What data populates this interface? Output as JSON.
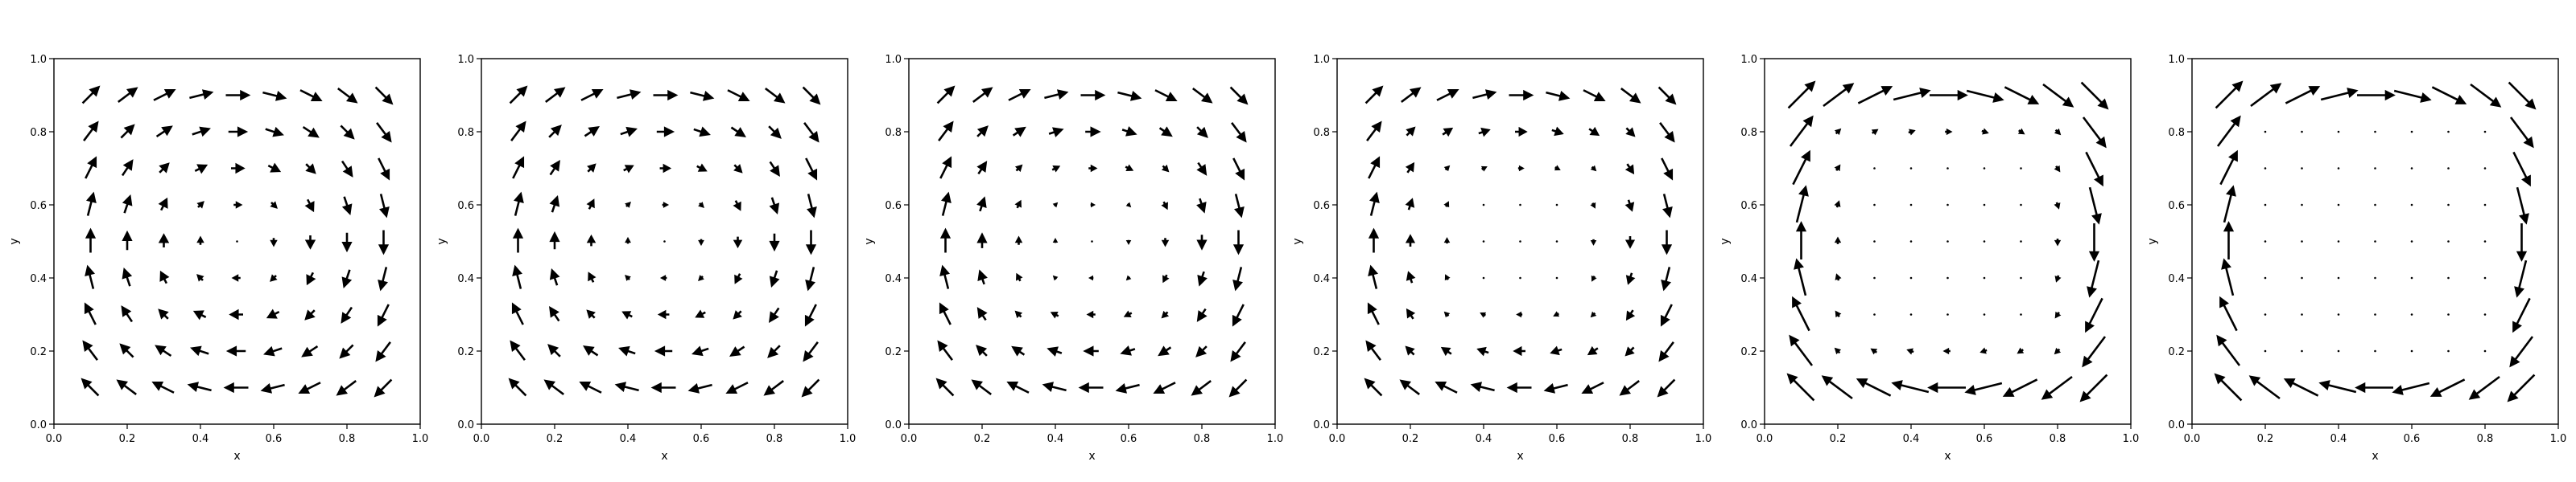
{
  "chart_data": [
    {
      "type": "quiver",
      "xlabel": "x",
      "ylabel": "y",
      "xlim": [
        0.0,
        1.0
      ],
      "ylim": [
        0.0,
        1.0
      ],
      "xticks": [
        "0.0",
        "0.2",
        "0.4",
        "0.6",
        "0.8",
        "1.0"
      ],
      "yticks": [
        "0.0",
        "0.2",
        "0.4",
        "0.6",
        "0.8",
        "1.0"
      ],
      "grid": false,
      "sample_points": [
        0.1,
        0.2,
        0.3,
        0.4,
        0.5,
        0.6,
        0.7,
        0.8,
        0.9
      ],
      "field": "clockwise circulation",
      "boundary_sharpness": 1
    },
    {
      "type": "quiver",
      "xlabel": "x",
      "ylabel": "y",
      "xlim": [
        0.0,
        1.0
      ],
      "ylim": [
        0.0,
        1.0
      ],
      "xticks": [
        "0.0",
        "0.2",
        "0.4",
        "0.6",
        "0.8",
        "1.0"
      ],
      "yticks": [
        "0.0",
        "0.2",
        "0.4",
        "0.6",
        "0.8",
        "1.0"
      ],
      "grid": false,
      "sample_points": [
        0.1,
        0.2,
        0.3,
        0.4,
        0.5,
        0.6,
        0.7,
        0.8,
        0.9
      ],
      "field": "clockwise circulation",
      "boundary_sharpness": 1.4
    },
    {
      "type": "quiver",
      "xlabel": "x",
      "ylabel": "y",
      "xlim": [
        0.0,
        1.0
      ],
      "ylim": [
        0.0,
        1.0
      ],
      "xticks": [
        "0.0",
        "0.2",
        "0.4",
        "0.6",
        "0.8",
        "1.0"
      ],
      "yticks": [
        "0.0",
        "0.2",
        "0.4",
        "0.6",
        "0.8",
        "1.0"
      ],
      "grid": false,
      "sample_points": [
        0.1,
        0.2,
        0.3,
        0.4,
        0.5,
        0.6,
        0.7,
        0.8,
        0.9
      ],
      "field": "clockwise circulation",
      "boundary_sharpness": 2
    },
    {
      "type": "quiver",
      "xlabel": "x",
      "ylabel": "y",
      "xlim": [
        0.0,
        1.0
      ],
      "ylim": [
        0.0,
        1.0
      ],
      "xticks": [
        "0.0",
        "0.2",
        "0.4",
        "0.6",
        "0.8",
        "1.0"
      ],
      "yticks": [
        "0.0",
        "0.2",
        "0.4",
        "0.6",
        "0.8",
        "1.0"
      ],
      "grid": false,
      "sample_points": [
        0.1,
        0.2,
        0.3,
        0.4,
        0.5,
        0.6,
        0.7,
        0.8,
        0.9
      ],
      "field": "clockwise circulation",
      "boundary_sharpness": 3
    },
    {
      "type": "quiver",
      "xlabel": "x",
      "ylabel": "y",
      "xlim": [
        0.0,
        1.0
      ],
      "ylim": [
        0.0,
        1.0
      ],
      "xticks": [
        "0.0",
        "0.2",
        "0.4",
        "0.6",
        "0.8",
        "1.0"
      ],
      "yticks": [
        "0.0",
        "0.2",
        "0.4",
        "0.6",
        "0.8",
        "1.0"
      ],
      "grid": false,
      "sample_points": [
        0.1,
        0.2,
        0.3,
        0.4,
        0.5,
        0.6,
        0.7,
        0.8,
        0.9
      ],
      "field": "clockwise circulation",
      "boundary_sharpness": 6
    },
    {
      "type": "quiver",
      "xlabel": "x",
      "ylabel": "y",
      "xlim": [
        0.0,
        1.0
      ],
      "ylim": [
        0.0,
        1.0
      ],
      "xticks": [
        "0.0",
        "0.2",
        "0.4",
        "0.6",
        "0.8",
        "1.0"
      ],
      "yticks": [
        "0.0",
        "0.2",
        "0.4",
        "0.6",
        "0.8",
        "1.0"
      ],
      "grid": false,
      "sample_points": [
        0.1,
        0.2,
        0.3,
        0.4,
        0.5,
        0.6,
        0.7,
        0.8,
        0.9
      ],
      "field": "clockwise circulation",
      "boundary_sharpness": 14
    }
  ],
  "colors": {
    "arrow": "#000000",
    "axes": "#000000",
    "background": "#ffffff"
  }
}
